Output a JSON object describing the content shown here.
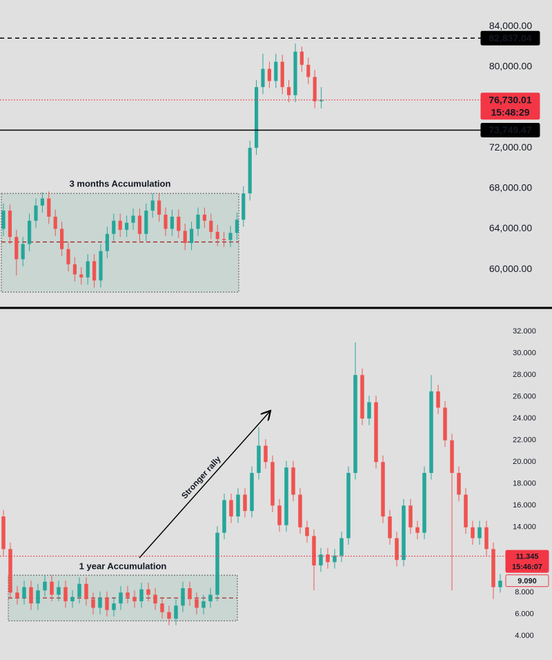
{
  "chart_data": [
    {
      "type": "candlestick",
      "up_color": "#26a69a",
      "down_color": "#ef5350",
      "ylim": [
        56600,
        86600
      ],
      "yticks": [
        {
          "value": 84000,
          "label": "84,000.00"
        },
        {
          "value": 80000,
          "label": "80,000.00"
        },
        {
          "value": 72000,
          "label": "72,000.00"
        },
        {
          "value": 68000,
          "label": "68,000.00"
        },
        {
          "value": 64000,
          "label": "64,000.00"
        },
        {
          "value": 60000,
          "label": "60,000.00"
        }
      ],
      "open": [
        64000,
        65800,
        63200,
        61000,
        62500,
        64800,
        66300,
        67000,
        65200,
        64000,
        62000,
        60500,
        59500,
        59200,
        60800,
        58900,
        61800,
        63500,
        64800,
        63900,
        64600,
        65300,
        63500,
        65800,
        66800,
        65400,
        64000,
        65200,
        63800,
        62600,
        64000,
        65400,
        64800,
        63700,
        63000,
        62900,
        63600,
        64900,
        67500,
        72000,
        78000,
        79800,
        78600,
        80500,
        78000,
        77200,
        81500,
        80200,
        79000,
        76600
      ],
      "high": [
        66500,
        66400,
        63900,
        63200,
        65500,
        67000,
        67600,
        67700,
        65900,
        64700,
        62700,
        61200,
        60200,
        61500,
        61500,
        62500,
        64200,
        65500,
        65500,
        65300,
        66000,
        66000,
        66500,
        67500,
        67500,
        66100,
        65900,
        65900,
        64500,
        64700,
        66100,
        66100,
        65500,
        64400,
        63700,
        64300,
        65600,
        68200,
        72700,
        78700,
        81300,
        80500,
        81300,
        81200,
        78700,
        82300,
        82000,
        80900,
        79700,
        78000
      ],
      "low": [
        63300,
        62500,
        59400,
        60300,
        61800,
        64100,
        65600,
        64500,
        63300,
        61300,
        59800,
        58800,
        58500,
        58500,
        58200,
        58200,
        61100,
        62800,
        63200,
        63200,
        63900,
        62800,
        62800,
        65100,
        64700,
        63300,
        63300,
        63100,
        61900,
        61900,
        63300,
        64100,
        63000,
        62300,
        62200,
        62200,
        62900,
        64200,
        66800,
        71300,
        77300,
        77900,
        77900,
        77300,
        76500,
        76500,
        79500,
        78300,
        75900,
        75900
      ],
      "close": [
        65800,
        63200,
        61000,
        62500,
        64800,
        66300,
        67000,
        65200,
        64000,
        62000,
        60500,
        59500,
        59200,
        60800,
        58900,
        61800,
        63500,
        64800,
        63900,
        64600,
        65300,
        63500,
        65800,
        66800,
        65400,
        64000,
        65200,
        63800,
        62600,
        64000,
        65400,
        64800,
        63700,
        63000,
        62900,
        63600,
        64900,
        67500,
        72000,
        78000,
        79800,
        78600,
        80500,
        78000,
        77200,
        81500,
        80200,
        79000,
        76600,
        76730
      ],
      "price_lines": [
        {
          "value": 82837.04,
          "label": "82,837.04",
          "style": "dashed",
          "color": "#000000"
        },
        {
          "value": 76730.01,
          "label": "76,730.01",
          "countdown": "15:48:29",
          "style": "dotted",
          "color": "#f23645"
        },
        {
          "value": 73749.47,
          "label": "73,749.47",
          "style": "solid",
          "color": "#000000"
        }
      ],
      "zone": {
        "label": "3 months Accumulation",
        "top": 67500,
        "bottom": 57750,
        "mid": 62700
      }
    },
    {
      "type": "candlestick",
      "up_color": "#26a69a",
      "down_color": "#ef5350",
      "ylim": [
        1.8,
        33.6
      ],
      "yticks": [
        {
          "value": 32,
          "label": "32.000"
        },
        {
          "value": 30,
          "label": "30.000"
        },
        {
          "value": 28,
          "label": "28.000"
        },
        {
          "value": 26,
          "label": "26.000"
        },
        {
          "value": 24,
          "label": "24.000"
        },
        {
          "value": 22,
          "label": "22.000"
        },
        {
          "value": 20,
          "label": "20.000"
        },
        {
          "value": 18,
          "label": "18.000"
        },
        {
          "value": 16,
          "label": "16.000"
        },
        {
          "value": 14,
          "label": "14.000"
        },
        {
          "value": 8,
          "label": "8.000"
        },
        {
          "value": 6,
          "label": "6.000"
        },
        {
          "value": 4,
          "label": "4.000"
        }
      ],
      "open": [
        15.0,
        12.0,
        8.0,
        7.5,
        8.5,
        7.0,
        8.2,
        9.0,
        7.8,
        8.5,
        7.2,
        7.6,
        8.8,
        7.4,
        6.6,
        7.5,
        6.4,
        7.0,
        8.0,
        7.6,
        7.2,
        8.3,
        7.8,
        7.0,
        6.2,
        5.6,
        6.8,
        8.4,
        7.4,
        6.6,
        7.2,
        7.8,
        13.5,
        16.5,
        15.0,
        17.0,
        15.5,
        19.0,
        21.5,
        20.0,
        16.0,
        14.2,
        19.5,
        17.0,
        14.0,
        13.2,
        10.5,
        11.5,
        10.8,
        11.4,
        13.0,
        19.0,
        28.0,
        24.0,
        25.5,
        20.0,
        15.0,
        13.0,
        11.0,
        16.0,
        14.0,
        13.5,
        19.0,
        26.5,
        25.0,
        22.0,
        19.0,
        17.0,
        14.0,
        13.0,
        14.0,
        12.0,
        8.5
      ],
      "high": [
        15.6,
        12.6,
        8.6,
        9.1,
        9.1,
        8.8,
        9.6,
        9.6,
        9.1,
        9.1,
        8.2,
        9.4,
        9.4,
        8.0,
        8.1,
        8.1,
        7.6,
        8.6,
        8.6,
        8.2,
        8.9,
        8.9,
        8.4,
        7.6,
        6.8,
        7.4,
        9.0,
        9.0,
        8.0,
        7.8,
        8.4,
        14.1,
        17.1,
        17.1,
        17.6,
        17.6,
        19.6,
        23.2,
        22.1,
        20.6,
        16.6,
        20.1,
        20.1,
        17.6,
        14.6,
        13.8,
        12.1,
        12.1,
        12.0,
        13.6,
        19.6,
        31.0,
        28.6,
        26.1,
        26.1,
        20.6,
        15.6,
        13.6,
        16.6,
        16.6,
        14.6,
        19.6,
        28.0,
        27.1,
        25.6,
        22.6,
        19.6,
        17.6,
        14.6,
        14.6,
        14.6,
        12.6,
        9.7
      ],
      "low": [
        11.4,
        7.4,
        6.9,
        6.9,
        6.4,
        6.4,
        7.6,
        7.2,
        7.2,
        6.6,
        6.6,
        7.0,
        6.8,
        6.0,
        6.0,
        5.8,
        5.8,
        6.4,
        7.0,
        6.6,
        6.6,
        7.2,
        6.4,
        5.6,
        5.0,
        5.0,
        6.2,
        6.8,
        6.0,
        6.0,
        6.6,
        7.2,
        12.9,
        14.4,
        14.4,
        14.9,
        14.9,
        18.4,
        19.4,
        15.4,
        13.6,
        13.6,
        16.4,
        13.4,
        12.6,
        8.2,
        9.9,
        10.2,
        10.2,
        10.8,
        12.4,
        18.4,
        23.4,
        23.4,
        19.4,
        14.4,
        12.4,
        10.4,
        10.4,
        13.4,
        12.9,
        12.9,
        18.4,
        24.4,
        21.4,
        8.2,
        16.4,
        13.4,
        12.4,
        12.4,
        11.4,
        7.4,
        8.0
      ],
      "close": [
        12.0,
        8.0,
        7.5,
        8.5,
        7.0,
        8.2,
        9.0,
        7.8,
        8.5,
        7.2,
        7.6,
        8.8,
        7.4,
        6.6,
        7.5,
        6.4,
        7.0,
        8.0,
        7.6,
        7.2,
        8.3,
        7.8,
        7.0,
        6.2,
        5.6,
        6.8,
        8.4,
        7.4,
        6.6,
        7.2,
        7.8,
        13.5,
        16.5,
        15.0,
        17.0,
        15.5,
        19.0,
        21.5,
        20.0,
        16.0,
        14.2,
        19.5,
        17.0,
        14.0,
        13.2,
        10.5,
        11.5,
        10.8,
        11.4,
        13.0,
        19.0,
        28.0,
        24.0,
        25.5,
        20.0,
        15.0,
        13.0,
        11.0,
        16.0,
        14.0,
        13.5,
        19.0,
        26.5,
        25.0,
        22.0,
        19.0,
        17.0,
        14.0,
        13.0,
        14.0,
        12.0,
        8.5,
        9.09
      ],
      "price_lines": [
        {
          "value": 11.345,
          "label": "11.345",
          "countdown": "15:46:07",
          "style": "dotted",
          "color": "#f23645"
        },
        {
          "value": 9.09,
          "label": "9.090",
          "style": "outline",
          "color": "#f23645"
        }
      ],
      "zone": {
        "label": "1 year Accumulation",
        "top": 9.6,
        "bottom": 5.4,
        "mid": 7.5
      },
      "annotation": "Stronger rally"
    }
  ]
}
